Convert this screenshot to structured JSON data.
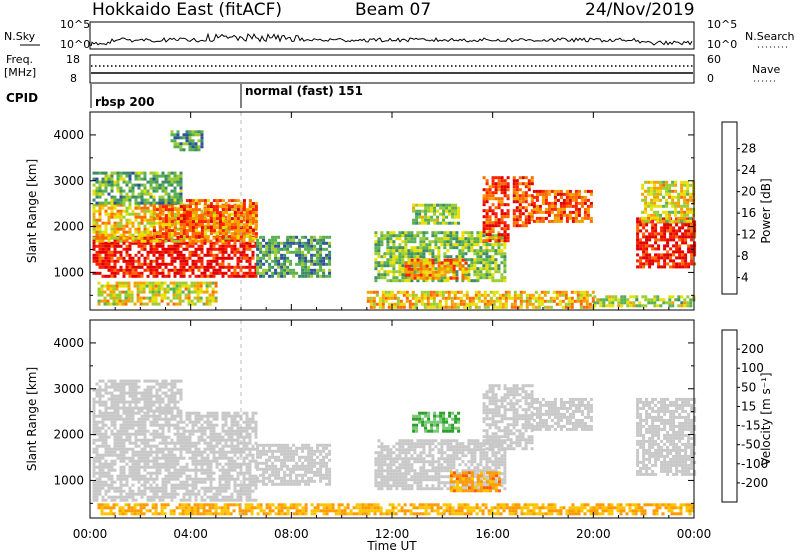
{
  "header": {
    "radar": "Hokkaido East (fitACF)",
    "beam": "Beam 07",
    "date": "24/Nov/2019"
  },
  "noise_panel": {
    "left_label": "N.Sky",
    "right_label": "N.Search",
    "tick_top": "10^5",
    "tick_bottom": "10^0"
  },
  "freq_panel": {
    "left_label_line1": "Freq.",
    "left_label_line2": "[MHz]",
    "left_tick_top": "18",
    "left_tick_bottom": "8",
    "right_label": "Nave",
    "right_tick_top": "60",
    "right_tick_bottom": "0"
  },
  "cpid_panel": {
    "label": "CPID",
    "segments": [
      {
        "start_hour": 0,
        "text": "rbsp 200"
      },
      {
        "start_hour": 6,
        "text": "normal (fast) 151"
      }
    ]
  },
  "chart_data": [
    {
      "type": "heatmap",
      "name": "power",
      "ylabel": "Slant Range [km]",
      "ylim": [
        180,
        4500
      ],
      "yticks": [
        1000,
        2000,
        3000,
        4000
      ],
      "xlim": [
        0,
        24
      ],
      "colorbar": {
        "label": "Power [dB]",
        "ticks": [
          "28",
          "24",
          "20",
          "16",
          "12",
          "8",
          "4"
        ],
        "colors": [
          "#0000ff",
          "#2f4fa0",
          "#3c8c64",
          "#58b050",
          "#9ccc30",
          "#e8e000",
          "#f5a000",
          "#ff6a00",
          "#ff2000",
          "#e00000"
        ]
      },
      "regions": [
        {
          "t0": 0.1,
          "t1": 6.6,
          "r0": 900,
          "r1": 1800,
          "level": 0.92
        },
        {
          "t0": 0.1,
          "t1": 6.6,
          "r0": 1700,
          "r1": 2500,
          "level": 0.6
        },
        {
          "t0": 2.5,
          "t1": 6.6,
          "r0": 1800,
          "r1": 2600,
          "level": 0.75
        },
        {
          "t0": 0.1,
          "t1": 3.6,
          "r0": 2500,
          "r1": 3200,
          "level": 0.35
        },
        {
          "t0": 3.2,
          "t1": 4.5,
          "r0": 3700,
          "r1": 4100,
          "level": 0.3
        },
        {
          "t0": 0.3,
          "t1": 5.0,
          "r0": 300,
          "r1": 800,
          "level": 0.55
        },
        {
          "t0": 6.6,
          "t1": 9.5,
          "r0": 900,
          "r1": 1800,
          "level": 0.3
        },
        {
          "t0": 11.3,
          "t1": 16.5,
          "r0": 800,
          "r1": 1900,
          "level": 0.4
        },
        {
          "t0": 12.5,
          "t1": 15.0,
          "r0": 900,
          "r1": 1300,
          "level": 0.72
        },
        {
          "t0": 12.8,
          "t1": 14.6,
          "r0": 2100,
          "r1": 2500,
          "level": 0.45
        },
        {
          "t0": 11.0,
          "t1": 20.0,
          "r0": 250,
          "r1": 600,
          "level": 0.6
        },
        {
          "t0": 15.6,
          "t1": 16.6,
          "r0": 1700,
          "r1": 3100,
          "level": 0.85
        },
        {
          "t0": 16.8,
          "t1": 17.6,
          "r0": 2000,
          "r1": 3100,
          "level": 0.8
        },
        {
          "t0": 17.6,
          "t1": 19.9,
          "r0": 2100,
          "r1": 2800,
          "level": 0.78
        },
        {
          "t0": 21.7,
          "t1": 24.0,
          "r0": 1100,
          "r1": 2200,
          "level": 0.9
        },
        {
          "t0": 21.9,
          "t1": 24.0,
          "r0": 2100,
          "r1": 3000,
          "level": 0.55
        },
        {
          "t0": 20.0,
          "t1": 24.0,
          "r0": 250,
          "r1": 500,
          "level": 0.45
        }
      ]
    },
    {
      "type": "heatmap",
      "name": "velocity",
      "ylabel": "Slant Range [km]",
      "ylim": [
        180,
        4500
      ],
      "yticks": [
        1000,
        2000,
        3000,
        4000
      ],
      "xlim": [
        0,
        24
      ],
      "colorbar": {
        "label": "Velocity [m s⁻¹]",
        "ticks": [
          "200",
          "100",
          "50",
          "15",
          "-15",
          "-50",
          "-100",
          "-200"
        ],
        "colors": [
          "#ff0000",
          "#ff5a00",
          "#ff9a00",
          "#ffc400",
          "#c8c8c8",
          "#c8c8c8",
          "#78c878",
          "#28a028",
          "#2040a0",
          "#2030c0"
        ]
      },
      "regions": [
        {
          "t0": 0.1,
          "t1": 6.6,
          "r0": 600,
          "r1": 2500,
          "level": 0.5
        },
        {
          "t0": 0.1,
          "t1": 3.6,
          "r0": 2500,
          "r1": 3200,
          "level": 0.5
        },
        {
          "t0": 6.6,
          "t1": 9.5,
          "r0": 900,
          "r1": 1800,
          "level": 0.5
        },
        {
          "t0": 11.3,
          "t1": 16.5,
          "r0": 800,
          "r1": 1900,
          "level": 0.5
        },
        {
          "t0": 12.8,
          "t1": 14.6,
          "r0": 2100,
          "r1": 2500,
          "level": 0.7
        },
        {
          "t0": 14.3,
          "t1": 16.3,
          "r0": 800,
          "r1": 1200,
          "level": 0.25
        },
        {
          "t0": 15.6,
          "t1": 17.6,
          "r0": 1700,
          "r1": 3100,
          "level": 0.5
        },
        {
          "t0": 17.6,
          "t1": 19.9,
          "r0": 2100,
          "r1": 2800,
          "level": 0.5
        },
        {
          "t0": 21.7,
          "t1": 24.0,
          "r0": 1100,
          "r1": 2800,
          "level": 0.5
        },
        {
          "t0": 0.3,
          "t1": 24.0,
          "r0": 250,
          "r1": 500,
          "level": 0.3
        }
      ]
    }
  ],
  "time_axis": {
    "xlabel": "Time UT",
    "ticks": [
      "00:00",
      "04:00",
      "08:00",
      "12:00",
      "16:00",
      "20:00",
      "00:00"
    ]
  }
}
